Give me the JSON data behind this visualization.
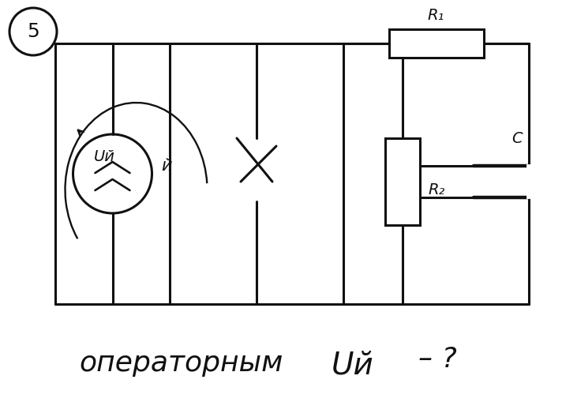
{
  "fig_width": 7.12,
  "fig_height": 5.09,
  "dpi": 100,
  "bg_color": "#ffffff",
  "line_color": "#111111",
  "line_width": 2.2,
  "label_5": "5",
  "label_R1": "R₁",
  "label_R2": "R₂",
  "label_C": "C",
  "label_J": "й",
  "label_UJ": "Uй",
  "bottom_text_1": "операторным",
  "bottom_text_2": "Uй",
  "bottom_text_3": "– ?"
}
